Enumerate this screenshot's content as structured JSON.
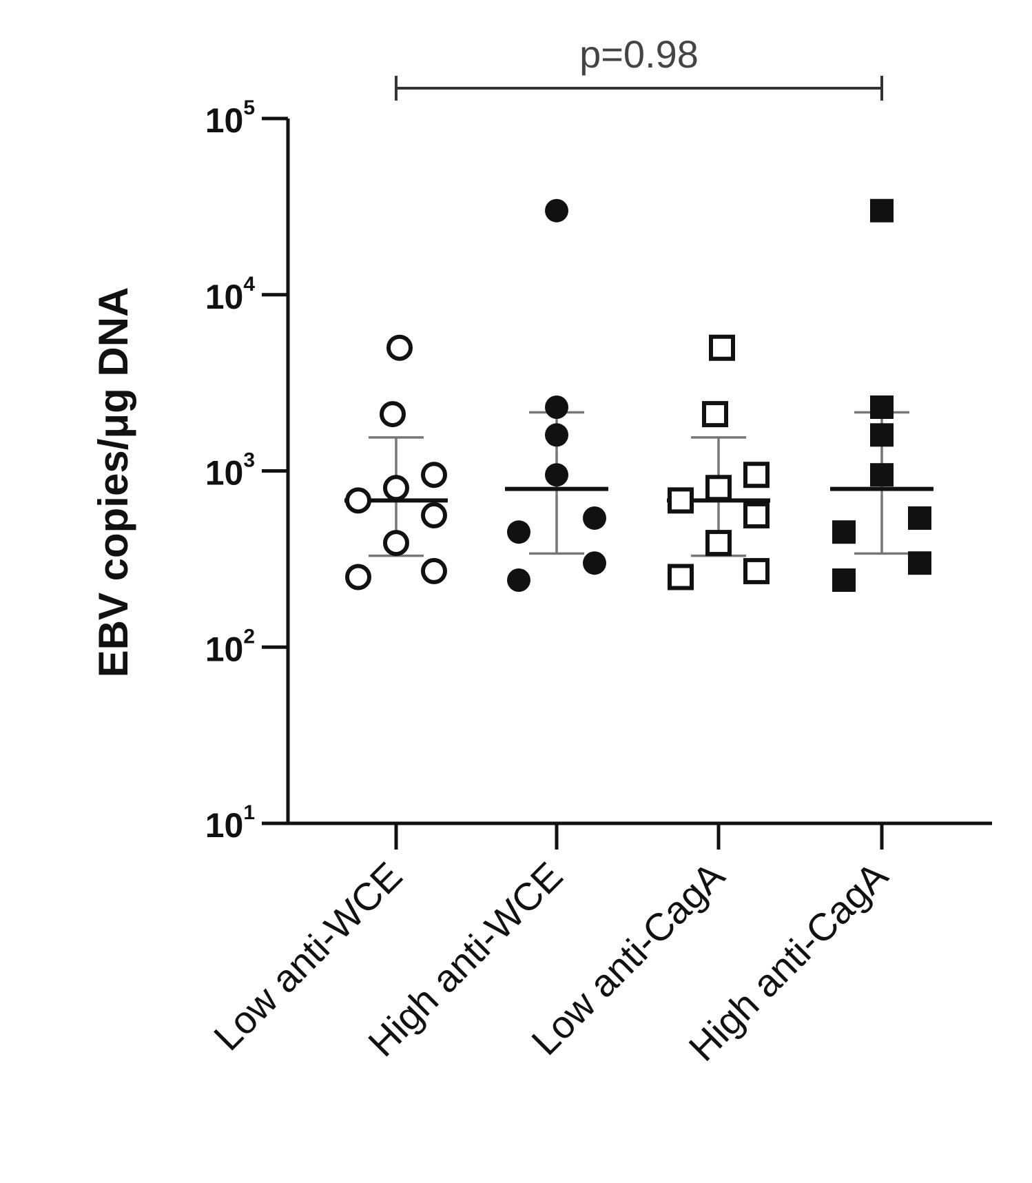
{
  "chart_data": {
    "type": "scatter",
    "subtype": "dot-plot with mean and error bars",
    "title": "",
    "xlabel": "",
    "ylabel": "EBV copies/μg DNA",
    "yscale": "log",
    "ylim": [
      10,
      100000
    ],
    "yticks": [
      {
        "base": "10",
        "exp": "1",
        "value": 10
      },
      {
        "base": "10",
        "exp": "2",
        "value": 100
      },
      {
        "base": "10",
        "exp": "3",
        "value": 1000
      },
      {
        "base": "10",
        "exp": "4",
        "value": 10000
      },
      {
        "base": "10",
        "exp": "5",
        "value": 100000
      }
    ],
    "categories": [
      "Low anti-WCE",
      "High anti-WCE",
      "Low anti-CagA",
      "High anti-CagA"
    ],
    "series": [
      {
        "category": "Low anti-WCE",
        "marker": "circle",
        "filled": false,
        "color": "#111111",
        "values": [
          5000,
          2100,
          950,
          800,
          680,
          560,
          390,
          270,
          250
        ],
        "mean": 680,
        "error_low": 330,
        "error_high": 1550
      },
      {
        "category": "High anti-WCE",
        "marker": "circle",
        "filled": true,
        "color": "#111111",
        "values": [
          30000,
          2300,
          1600,
          950,
          540,
          450,
          300,
          240
        ],
        "mean": 790,
        "error_low": 340,
        "error_high": 2150
      },
      {
        "category": "Low anti-CagA",
        "marker": "square",
        "filled": false,
        "color": "#111111",
        "values": [
          5000,
          2100,
          950,
          800,
          680,
          560,
          390,
          270,
          250
        ],
        "mean": 680,
        "error_low": 330,
        "error_high": 1550
      },
      {
        "category": "High anti-CagA",
        "marker": "square",
        "filled": true,
        "color": "#111111",
        "values": [
          30000,
          2300,
          1600,
          950,
          540,
          450,
          300,
          240
        ],
        "mean": 790,
        "error_low": 340,
        "error_high": 2150
      }
    ],
    "annotations": [
      {
        "text": "p=0.98",
        "from_category": "Low anti-WCE",
        "to_category": "High anti-CagA"
      }
    ],
    "grid": false,
    "legend": "none",
    "colors": {
      "axis": "#111111",
      "mean": "#111111",
      "error": "#777777",
      "bracket": "#333333"
    }
  }
}
